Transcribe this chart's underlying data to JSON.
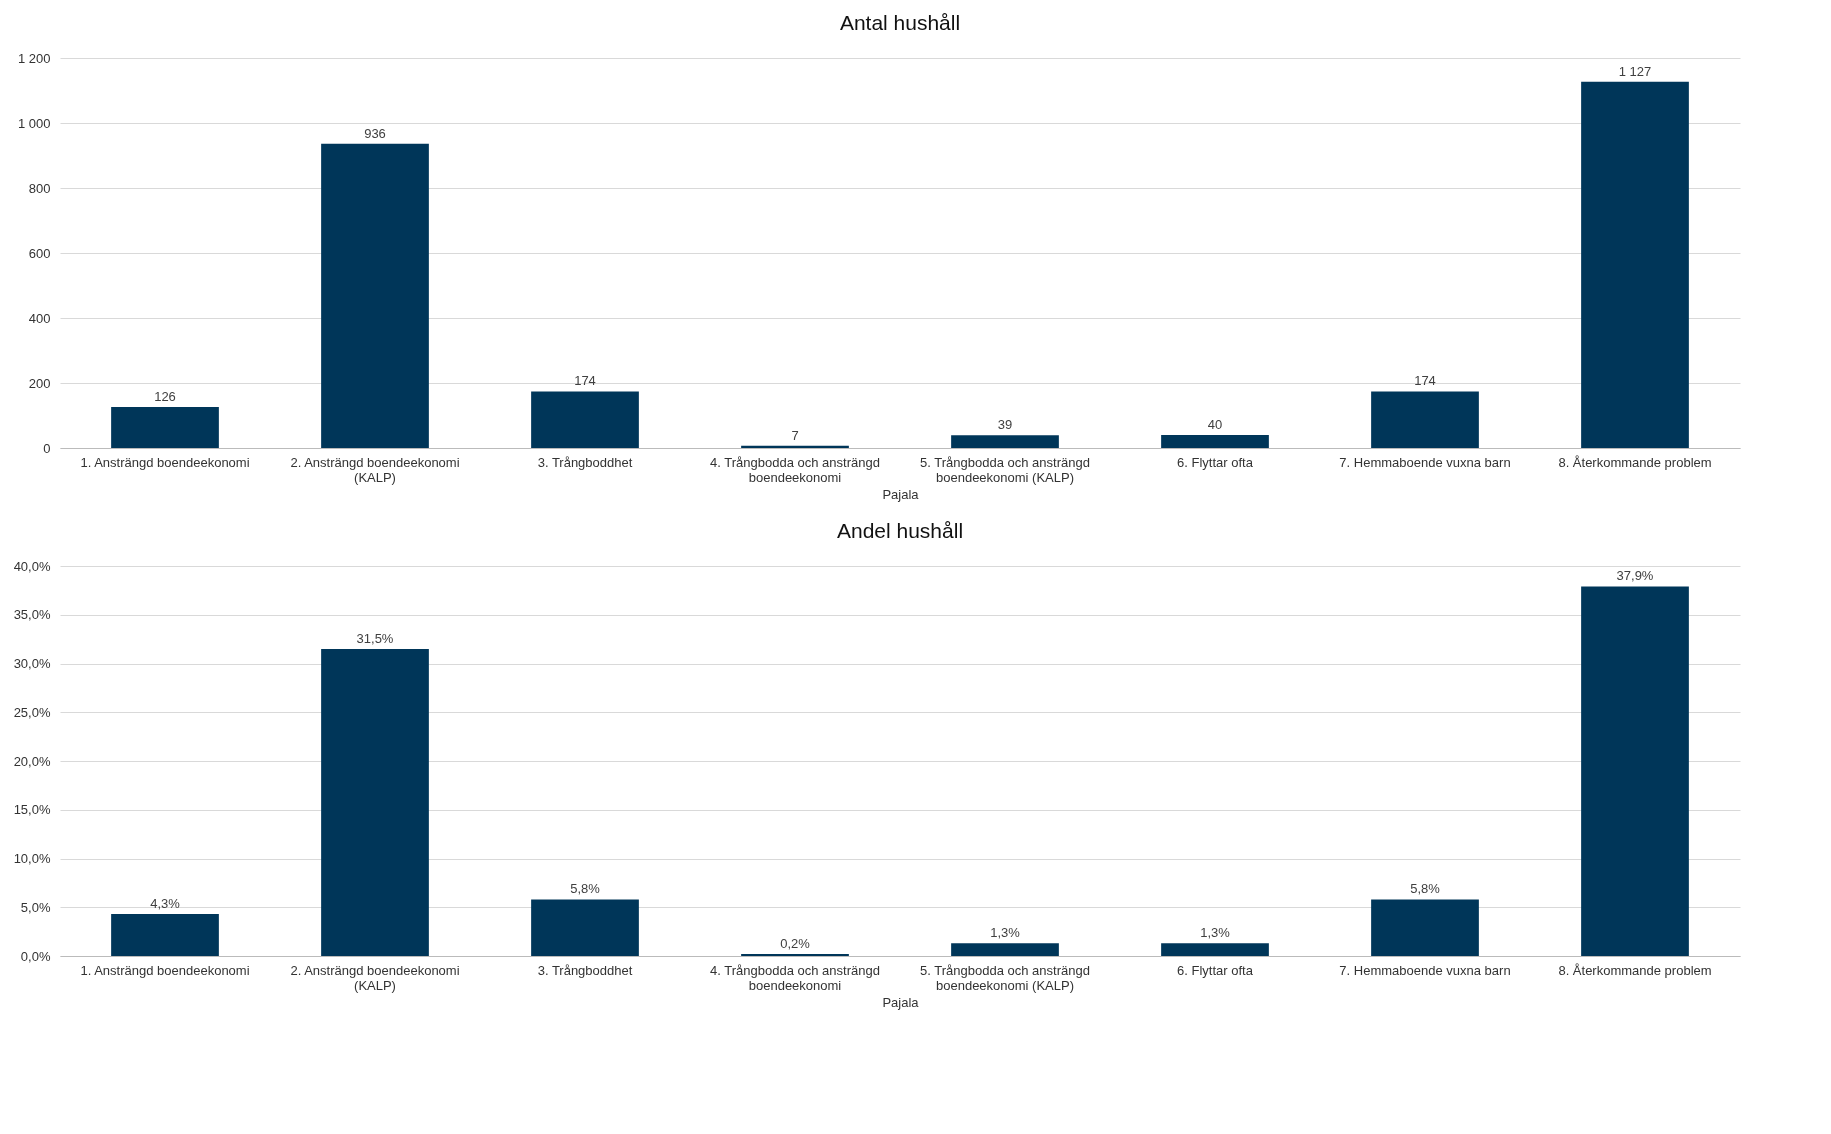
{
  "chart_data": [
    {
      "type": "bar",
      "title": "Antal hushåll",
      "xlabel": "Pajala",
      "categories": [
        "1. Ansträngd boendeekonomi",
        "2. Ansträngd boendeekonomi (KALP)",
        "3. Trångboddhet",
        "4. Trångbodda och ansträngd boendeekonomi",
        "5. Trångbodda och ansträngd boendeekonomi (KALP)",
        "6. Flyttar ofta",
        "7. Hemmaboende vuxna barn",
        "8. Återkommande problem"
      ],
      "values": [
        126,
        936,
        174,
        7,
        39,
        40,
        174,
        1127
      ],
      "value_labels": [
        "126",
        "936",
        "174",
        "7",
        "39",
        "40",
        "174",
        "1 127"
      ],
      "color": "#003659",
      "ylim": [
        0,
        1200
      ],
      "yticks": [
        0,
        200,
        400,
        600,
        800,
        {
          "value": 1000,
          "label": "1 000"
        },
        {
          "value": 1200,
          "label": "1 200"
        }
      ],
      "grid": "y"
    },
    {
      "type": "bar",
      "title": "Andel hushåll",
      "xlabel": "Pajala",
      "categories": [
        "1. Ansträngd boendeekonomi",
        "2. Ansträngd boendeekonomi (KALP)",
        "3. Trångboddhet",
        "4. Trångbodda och ansträngd boendeekonomi",
        "5. Trångbodda och ansträngd boendeekonomi (KALP)",
        "6. Flyttar ofta",
        "7. Hemmaboende vuxna barn",
        "8. Återkommande problem"
      ],
      "values": [
        4.3,
        31.5,
        5.8,
        0.2,
        1.3,
        1.3,
        5.8,
        37.9
      ],
      "value_labels": [
        "4,3%",
        "31,5%",
        "5,8%",
        "0,2%",
        "1,3%",
        "1,3%",
        "5,8%",
        "37,9%"
      ],
      "color": "#003659",
      "ylim": [
        0,
        40
      ],
      "yticks": [
        {
          "value": 0,
          "label": "0,0%"
        },
        {
          "value": 5,
          "label": "5,0%"
        },
        {
          "value": 10,
          "label": "10,0%"
        },
        {
          "value": 15,
          "label": "15,0%"
        },
        {
          "value": 20,
          "label": "20,0%"
        },
        {
          "value": 25,
          "label": "25,0%"
        },
        {
          "value": 30,
          "label": "30,0%"
        },
        {
          "value": 35,
          "label": "35,0%"
        },
        {
          "value": 40,
          "label": "40,0%"
        }
      ],
      "grid": "y"
    }
  ]
}
